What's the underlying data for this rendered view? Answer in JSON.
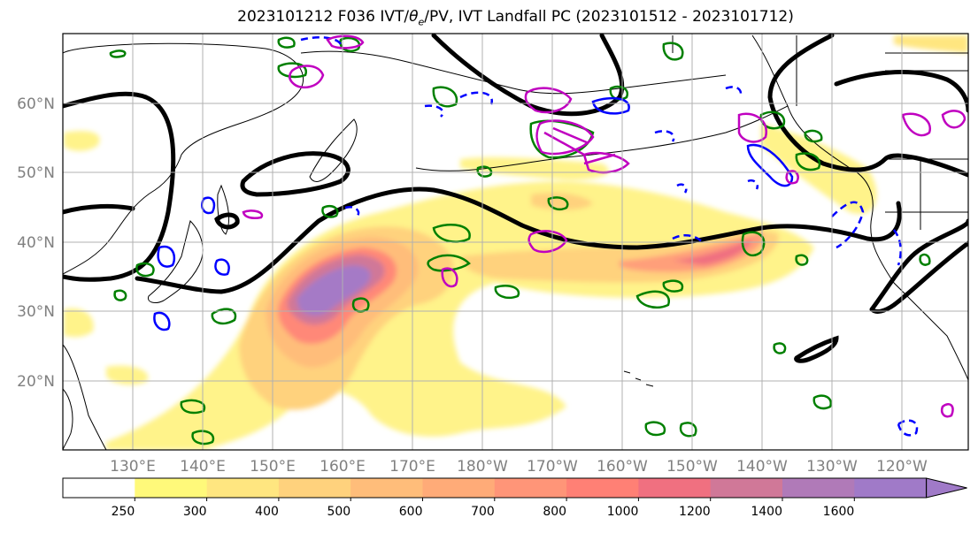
{
  "title": "2023101212 F036 IVT/θe/PV, IVT Landfall PC (2023101512 - 2023101712)",
  "title_parts": {
    "pre": "2023101212 F036 IVT/",
    "theta": "θ",
    "sub": "e",
    "post": "/PV, IVT Landfall PC (2023101512 - 2023101712)"
  },
  "lat_labels": [
    "20°N",
    "30°N",
    "40°N",
    "50°N",
    "60°N"
  ],
  "lon_labels": [
    "130°E",
    "140°E",
    "150°E",
    "160°E",
    "170°E",
    "180°W",
    "170°W",
    "160°W",
    "150°W",
    "140°W",
    "130°W",
    "120°W"
  ],
  "colorbar": {
    "ticks": [
      "250",
      "300",
      "400",
      "500",
      "600",
      "700",
      "800",
      "1000",
      "1200",
      "1400",
      "1600"
    ],
    "colors": [
      "#ffffff",
      "#fff97a",
      "#ffe680",
      "#ffd27d",
      "#ffbd7a",
      "#ffab78",
      "#ff9578",
      "#ff8075",
      "#f07080",
      "#d07898",
      "#b07ab8",
      "#a07ac8"
    ],
    "extend": "max"
  },
  "legend_colors": {
    "ivt_shading": "yellow-orange-red-purple",
    "theta_e_contour": "#000000",
    "pv_contour_positive": "#008000",
    "pv_contour_negative": "#0000ff",
    "landfall_contour": "#c000c0"
  },
  "chart_data": {
    "type": "heatmap",
    "title": "2023101212 F036 IVT/θe/PV, IVT Landfall PC (2023101512 - 2023101712)",
    "xlabel": "",
    "ylabel": "",
    "x_ticks": [
      "130°E",
      "140°E",
      "150°E",
      "160°E",
      "170°E",
      "180°W",
      "170°W",
      "160°W",
      "150°W",
      "140°W",
      "130°W",
      "120°W"
    ],
    "y_ticks": [
      "20°N",
      "30°N",
      "40°N",
      "50°N",
      "60°N"
    ],
    "lon_range": [
      120,
      250
    ],
    "lat_range": [
      10,
      70
    ],
    "grid": true,
    "colorbar_levels": [
      250,
      300,
      400,
      500,
      600,
      700,
      800,
      1000,
      1200,
      1400,
      1600
    ],
    "ivt_features": [
      {
        "name": "atmospheric river core",
        "lon_center": 158,
        "lat_center": 32.5,
        "max_ivt": 1400
      },
      {
        "name": "eastern plume",
        "lon_center": 218,
        "lat_center": 36,
        "max_ivt": 1000
      }
    ]
  }
}
